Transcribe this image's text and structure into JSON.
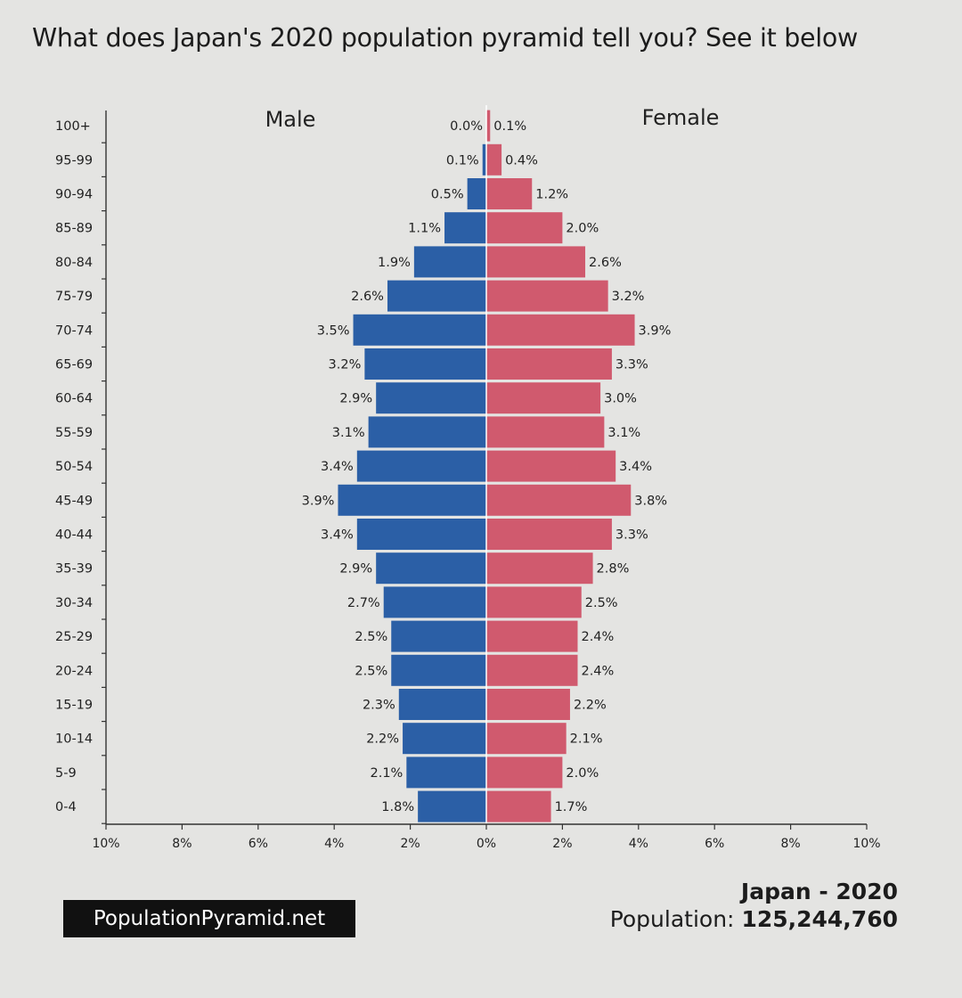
{
  "headline": "What does Japan's 2020 population pyramid tell you? See it below",
  "footer": {
    "site": "PopulationPyramid.net",
    "country_year": "Japan - 2020",
    "population_label": "Population:",
    "population_value": "125,244,760"
  },
  "colors": {
    "male": "#2b5fa6",
    "female": "#d05a6e",
    "background": "#e4e4e2"
  },
  "chart_data": {
    "type": "bar",
    "orientation": "horizontal-pyramid",
    "grid": false,
    "categories": [
      "0-4",
      "5-9",
      "10-14",
      "15-19",
      "20-24",
      "25-29",
      "30-34",
      "35-39",
      "40-44",
      "45-49",
      "50-54",
      "55-59",
      "60-64",
      "65-69",
      "70-74",
      "75-79",
      "80-84",
      "85-89",
      "90-94",
      "95-99",
      "100+"
    ],
    "series": [
      {
        "name": "Male",
        "side": "left",
        "values": [
          1.8,
          2.1,
          2.2,
          2.3,
          2.5,
          2.5,
          2.7,
          2.9,
          3.4,
          3.9,
          3.4,
          3.1,
          2.9,
          3.2,
          3.5,
          2.6,
          1.9,
          1.1,
          0.5,
          0.1,
          0.0
        ]
      },
      {
        "name": "Female",
        "side": "right",
        "values": [
          1.7,
          2.0,
          2.1,
          2.2,
          2.4,
          2.4,
          2.5,
          2.8,
          3.3,
          3.8,
          3.4,
          3.1,
          3.0,
          3.3,
          3.9,
          3.2,
          2.6,
          2.0,
          1.2,
          0.4,
          0.1
        ]
      }
    ],
    "xlim": [
      -10,
      10
    ],
    "xticks": [
      "10%",
      "8%",
      "6%",
      "4%",
      "2%",
      "0%",
      "2%",
      "4%",
      "6%",
      "8%",
      "10%"
    ],
    "value_suffix": "%"
  }
}
